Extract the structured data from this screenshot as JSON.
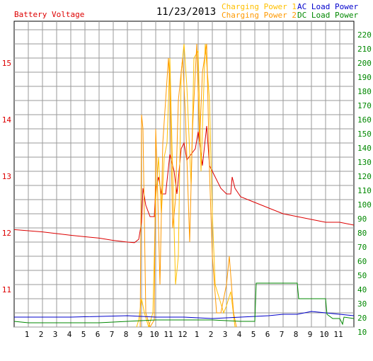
{
  "chart_data": {
    "type": "line",
    "title": "11/23/2013",
    "xlim": [
      0,
      24
    ],
    "xticks": [
      {
        "value": 1,
        "label": "1"
      },
      {
        "value": 2,
        "label": "2"
      },
      {
        "value": 3,
        "label": "3"
      },
      {
        "value": 4,
        "label": "4"
      },
      {
        "value": 5,
        "label": "5"
      },
      {
        "value": 6,
        "label": "6"
      },
      {
        "value": 7,
        "label": "7"
      },
      {
        "value": 8,
        "label": "8"
      },
      {
        "value": 9,
        "label": "9"
      },
      {
        "value": 10,
        "label": "10"
      },
      {
        "value": 11,
        "label": "11"
      },
      {
        "value": 12,
        "label": "12"
      },
      {
        "value": 13,
        "label": "1"
      },
      {
        "value": 14,
        "label": "2"
      },
      {
        "value": 15,
        "label": "3"
      },
      {
        "value": 16,
        "label": "4"
      },
      {
        "value": 17,
        "label": "5"
      },
      {
        "value": 18,
        "label": "6"
      },
      {
        "value": 19,
        "label": "7"
      },
      {
        "value": 20,
        "label": "8"
      },
      {
        "value": 21,
        "label": "9"
      },
      {
        "value": 22,
        "label": "10"
      },
      {
        "value": 23,
        "label": "11"
      }
    ],
    "ylim": [
      10.25,
      15.65
    ],
    "yticks": [
      11,
      12,
      13,
      14,
      15
    ],
    "y2lim": [
      10,
      226
    ],
    "y2ticks": [
      10,
      20,
      30,
      40,
      50,
      60,
      70,
      80,
      90,
      100,
      110,
      120,
      130,
      140,
      150,
      160,
      170,
      180,
      190,
      200,
      210,
      220
    ],
    "grid": true,
    "series": [
      {
        "name": "Battery Voltage",
        "color": "#dd0000",
        "axis": "y",
        "x": [
          0,
          2,
          4,
          6,
          7,
          8,
          8.5,
          8.8,
          9,
          9.1,
          9.3,
          9.6,
          9.9,
          10,
          10.2,
          10.4,
          10.7,
          11,
          11.3,
          11.5,
          11.8,
          12,
          12.2,
          12.5,
          12.8,
          13,
          13.3,
          13.6,
          13.8,
          14.2,
          14.6,
          15,
          15.3,
          15.4,
          15.6,
          16,
          17,
          18,
          19,
          20,
          21,
          22,
          23,
          24
        ],
        "values": [
          11.97,
          11.93,
          11.87,
          11.82,
          11.78,
          11.75,
          11.74,
          11.8,
          12.1,
          12.7,
          12.4,
          12.2,
          12.2,
          12.7,
          12.9,
          12.6,
          12.6,
          13.3,
          13.0,
          12.6,
          13.4,
          13.5,
          13.2,
          13.3,
          13.4,
          13.7,
          13.1,
          13.8,
          13.1,
          12.9,
          12.7,
          12.6,
          12.6,
          12.9,
          12.7,
          12.55,
          12.45,
          12.35,
          12.25,
          12.2,
          12.15,
          12.1,
          12.1,
          12.05
        ]
      },
      {
        "name": "Charging Power 1",
        "color": "#ffc000",
        "axis": "y2",
        "x": [
          0,
          8,
          8.5,
          8.8,
          9,
          9.2,
          9.5,
          9.8,
          10,
          10.2,
          10.4,
          10.6,
          10.8,
          11,
          11.2,
          11.4,
          11.6,
          11.8,
          12,
          12.2,
          12.5,
          12.7,
          13,
          13.2,
          13.5,
          13.8,
          14,
          14.2,
          14.5,
          14.8,
          15,
          15.3,
          15.6,
          16,
          24
        ],
        "values": [
          0,
          0,
          5,
          15,
          30,
          20,
          10,
          20,
          100,
          130,
          90,
          130,
          140,
          200,
          120,
          40,
          60,
          190,
          210,
          180,
          110,
          200,
          205,
          120,
          210,
          170,
          90,
          40,
          30,
          20,
          25,
          35,
          10,
          0,
          0
        ]
      },
      {
        "name": "Charging Power 2",
        "color": "#ff9900",
        "axis": "y2",
        "x": [
          0,
          8.5,
          8.9,
          9,
          9.1,
          9.3,
          9.6,
          9.9,
          10,
          10.1,
          10.3,
          10.5,
          10.7,
          10.9,
          11,
          11.2,
          11.4,
          11.6,
          11.9,
          12.1,
          12.4,
          12.6,
          12.9,
          13.1,
          13.3,
          13.6,
          13.8,
          14,
          14.3,
          14.6,
          15,
          15.2,
          15.5,
          15.8,
          16,
          24
        ],
        "values": [
          0,
          0,
          5,
          160,
          150,
          20,
          10,
          15,
          150,
          120,
          40,
          140,
          170,
          200,
          180,
          80,
          100,
          170,
          200,
          160,
          70,
          150,
          210,
          140,
          190,
          210,
          120,
          60,
          20,
          20,
          40,
          60,
          20,
          5,
          0,
          0
        ]
      },
      {
        "name": "AC Load Power",
        "color": "#0000cc",
        "axis": "y2",
        "x": [
          0,
          4,
          8,
          10,
          12,
          14,
          16,
          18,
          19,
          20,
          21,
          22,
          23,
          24
        ],
        "values": [
          17,
          17,
          18,
          17,
          17,
          16,
          17,
          18,
          19,
          19,
          21,
          20,
          19,
          18
        ]
      },
      {
        "name": "DC Load Power",
        "color": "#008800",
        "axis": "y2",
        "x": [
          0,
          1,
          3,
          6,
          8,
          10,
          14,
          16,
          17,
          17.1,
          20,
          20.1,
          22,
          22.1,
          22.5,
          23,
          23.2,
          23.3,
          24
        ],
        "values": [
          14,
          13,
          13,
          13,
          14,
          15,
          15,
          14,
          14,
          41,
          41,
          30,
          30,
          19,
          16,
          16,
          12,
          17,
          16
        ]
      }
    ]
  }
}
